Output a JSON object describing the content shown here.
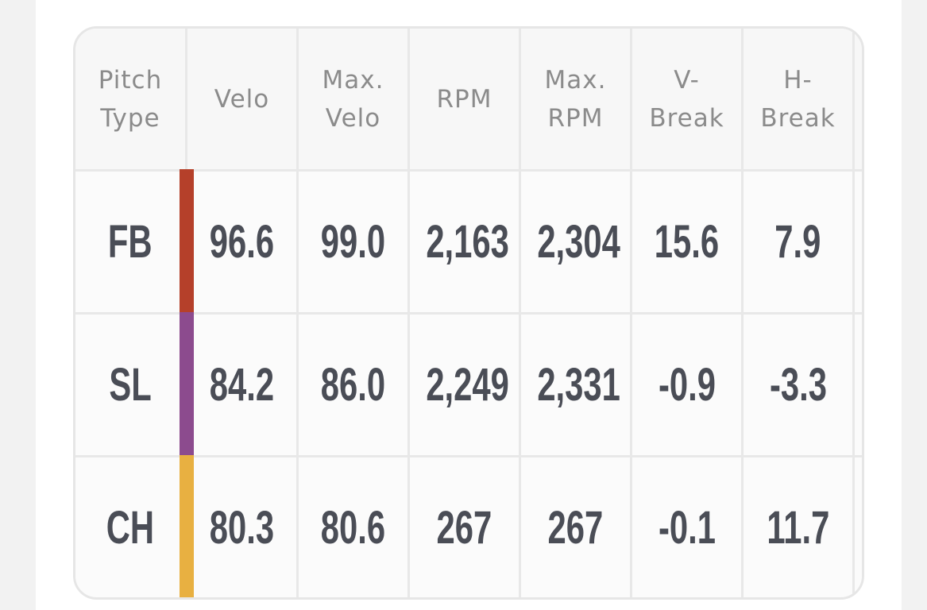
{
  "table": {
    "headers": [
      "Pitch Type",
      "Velo",
      "Max. Velo",
      "RPM",
      "Max. RPM",
      "V- Break",
      "H- Break"
    ],
    "rows": [
      {
        "pitch": "FB",
        "color": "#b5402a",
        "cells": [
          "96.6",
          "99.0",
          "2,163",
          "2,304",
          "15.6",
          "7.9"
        ]
      },
      {
        "pitch": "SL",
        "color": "#8c4b8e",
        "cells": [
          "84.2",
          "86.0",
          "2,249",
          "2,331",
          "-0.9",
          "-3.3"
        ]
      },
      {
        "pitch": "CH",
        "color": "#e8b041",
        "cells": [
          "80.3",
          "80.6",
          "267",
          "267",
          "-0.1",
          "11.7"
        ]
      }
    ]
  }
}
